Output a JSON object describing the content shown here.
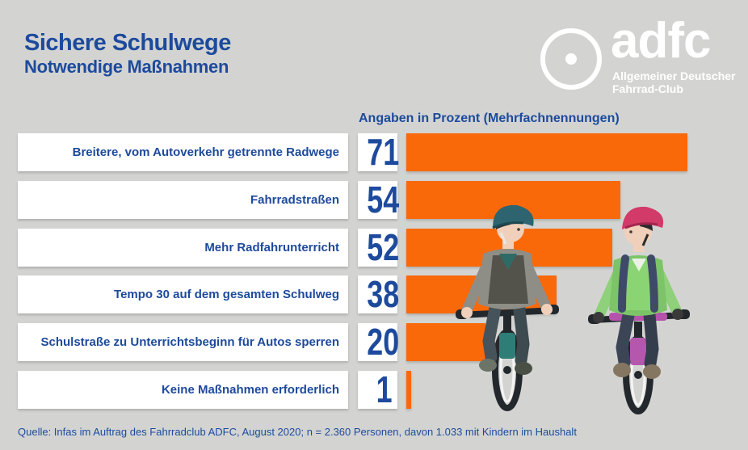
{
  "page": {
    "background_color": "#d3d4d2",
    "text_color": "#1d4a9c"
  },
  "header": {
    "title": "Sichere Schulwege",
    "subtitle": "Notwendige Maßnahmen"
  },
  "logo": {
    "name": "adfc",
    "tagline_line1": "Allgemeiner Deutscher",
    "tagline_line2": "Fahrrad-Club",
    "color": "#ffffff",
    "icon": "bicycle-wheel-icon"
  },
  "chart_data": {
    "type": "bar",
    "orientation": "horizontal",
    "title": "Angaben in Prozent (Mehrfachnennungen)",
    "categories": [
      "Breitere, vom Autoverkehr getrennte Radwege",
      "Fahrradstraßen",
      "Mehr Radfahrunterricht",
      "Tempo 30 auf dem gesamten Schulweg",
      "Schulstraße zu Unterrichtsbeginn für Autos sperren",
      "Keine Maßnahmen erforderlich"
    ],
    "values": [
      71,
      54,
      52,
      38,
      20,
      1
    ],
    "unit": "Prozent",
    "xlim": [
      0,
      73
    ],
    "grid": false,
    "legend": false,
    "bar_color": "#f9690a",
    "value_color": "#1d4a9c",
    "label_box_color": "#ffffff"
  },
  "footer": {
    "source": "Quelle: Infas im Auftrag des Fahrradclub ADFC, August 2020; n = 2.360 Personen, davon 1.033 mit Kindern im Haushalt"
  }
}
